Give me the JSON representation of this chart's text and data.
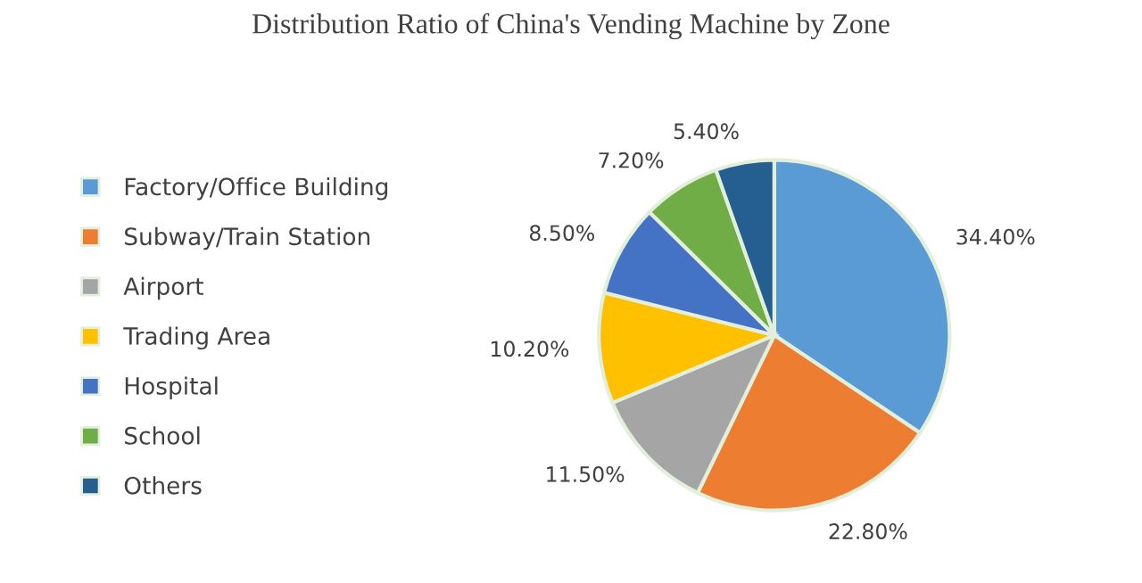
{
  "chart_data": {
    "type": "pie",
    "title": "Distribution Ratio of China's Vending Machine by Zone",
    "categories": [
      "Factory/Office Building",
      "Subway/Train Station",
      "Airport",
      "Trading Area",
      "Hospital",
      "School",
      "Others"
    ],
    "values": [
      34.4,
      22.8,
      11.5,
      10.2,
      8.5,
      7.2,
      5.4
    ],
    "value_labels": [
      "34.40%",
      "22.80%",
      "11.50%",
      "10.20%",
      "8.50%",
      "7.20%",
      "5.40%"
    ],
    "colors": [
      "#5b9bd5",
      "#ed7d31",
      "#a5a5a5",
      "#ffc000",
      "#4472c4",
      "#70ad47",
      "#255e91"
    ],
    "legend": "left"
  }
}
